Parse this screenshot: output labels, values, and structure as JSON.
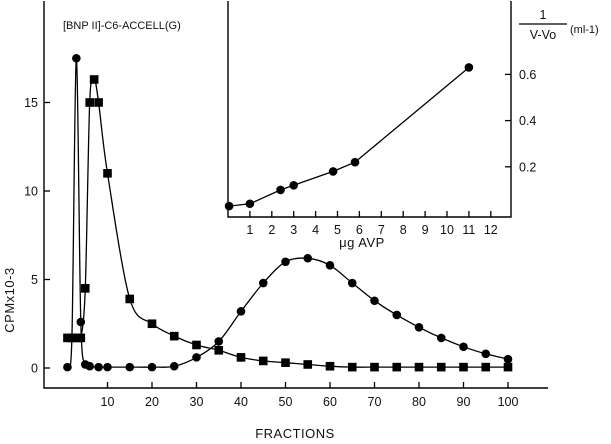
{
  "main_chart": {
    "type": "line",
    "title": "",
    "xlabel": "FRACTIONS",
    "ylabel": "CPMx10-3",
    "xlim": [
      0,
      100
    ],
    "ylim": [
      0,
      18
    ],
    "xticks": [
      "10",
      "20",
      "30",
      "40",
      "50",
      "60",
      "70",
      "80",
      "90",
      "100"
    ],
    "yticks": [
      "0",
      "5",
      "10",
      "15"
    ],
    "annotation": "[BNP II]-C6-ACCELL(G)"
  },
  "chart_data": [
    {
      "type": "line",
      "xlabel": "FRACTIONS",
      "ylabel": "CPMx10-3",
      "xlim": [
        0,
        100
      ],
      "ylim": [
        0,
        18
      ],
      "series": [
        {
          "marker": "circle",
          "x": [
            1,
            2,
            3,
            4,
            5,
            6,
            8,
            10,
            15,
            20,
            25,
            30,
            35,
            40,
            45,
            50,
            55,
            60,
            65,
            70,
            75,
            80,
            85,
            90,
            95,
            100
          ],
          "y": [
            0.05,
            1.7,
            17.5,
            2.6,
            0.2,
            0.1,
            0.05,
            0.05,
            0.05,
            0.05,
            0.1,
            0.6,
            1.5,
            3.2,
            4.8,
            6.0,
            6.2,
            5.8,
            4.8,
            3.8,
            3.0,
            2.3,
            1.7,
            1.2,
            0.8,
            0.5
          ]
        },
        {
          "marker": "square",
          "x": [
            1,
            2,
            3,
            4,
            5,
            6,
            7,
            8,
            10,
            15,
            20,
            25,
            30,
            35,
            40,
            45,
            50,
            55,
            60,
            65,
            70,
            75,
            80,
            85,
            90,
            95,
            100
          ],
          "y": [
            1.7,
            1.7,
            1.7,
            1.7,
            4.5,
            15.0,
            16.3,
            15.0,
            11.0,
            3.9,
            2.5,
            1.8,
            1.3,
            1.0,
            0.6,
            0.4,
            0.3,
            0.2,
            0.1,
            0.05,
            0.05,
            0.05,
            0.05,
            0.05,
            0.05,
            0.05,
            0.05
          ]
        }
      ]
    },
    {
      "type": "line",
      "xlabel": "μg  AVP",
      "ylabel": "1/V-Vo (ml-1)",
      "xlim": [
        0,
        12.5
      ],
      "ylim": [
        0,
        0.8
      ],
      "series": [
        {
          "marker": "circle",
          "x": [
            0.05,
            1,
            2.4,
            3,
            4.8,
            5.8,
            11
          ],
          "y": [
            0.03,
            0.04,
            0.1,
            0.12,
            0.18,
            0.22,
            0.63
          ]
        }
      ]
    }
  ],
  "inset": {
    "xlabel": "μg  AVP",
    "xticks": [
      "1",
      "2",
      "3",
      "4",
      "5",
      "6",
      "7",
      "8",
      "9",
      "10",
      "11",
      "12"
    ],
    "yticks": [
      "0.2",
      "0.4",
      "0.6"
    ],
    "ylabel_num": "1",
    "ylabel_den": "V-Vo",
    "ylabel_unit": "(ml-1)"
  }
}
